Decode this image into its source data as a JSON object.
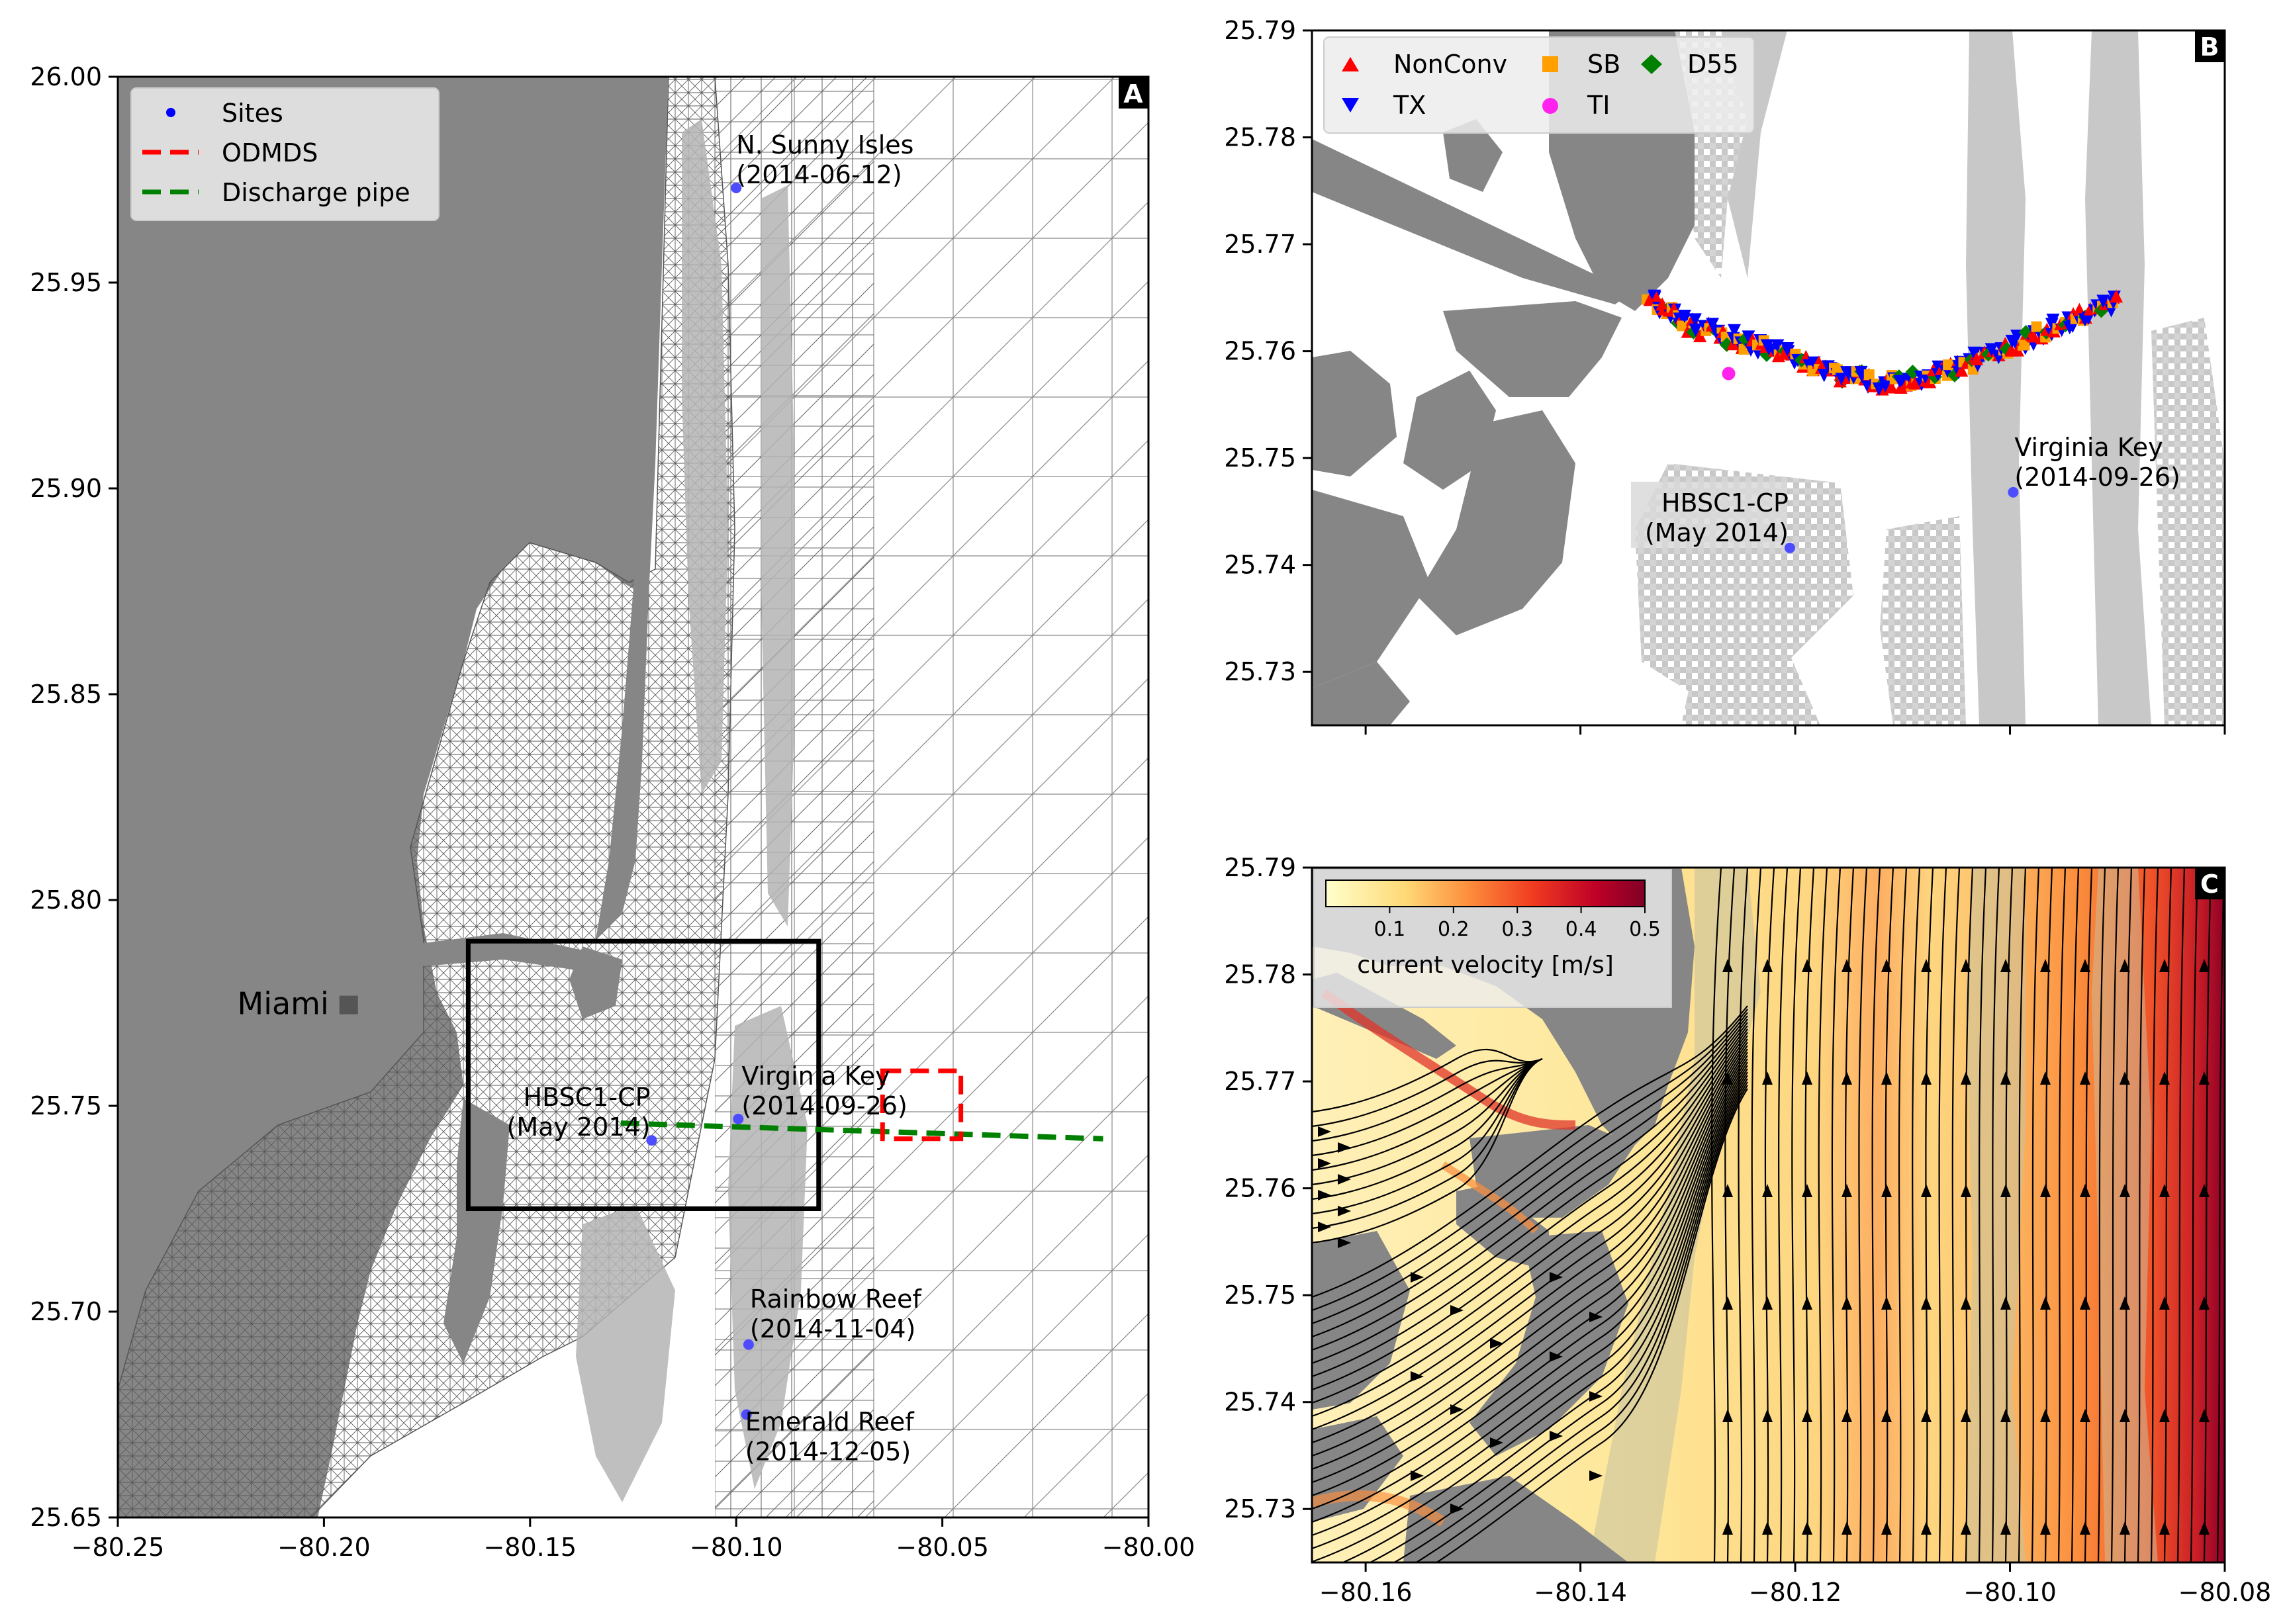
{
  "colors": {
    "land": "#868686",
    "shoal": "#c8c8c8",
    "mesh": "#555555",
    "site": "#4d4dff",
    "odmds": "#ff0000",
    "pipe": "#008000",
    "nonconv": "#ff0000",
    "tx": "#0000ff",
    "sb": "#ff9f00",
    "ti": "#ff22ee",
    "d55": "#008000",
    "stream": "#000000"
  },
  "chart_data": [
    {
      "type": "scatter",
      "panel_label": "A",
      "xlim": [
        -80.25,
        -80.0
      ],
      "ylim": [
        25.65,
        26.0
      ],
      "xticks": [
        -80.25,
        -80.2,
        -80.15,
        -80.1,
        -80.05,
        -80.0
      ],
      "xtick_labels": [
        "−80.25",
        "−80.20",
        "−80.15",
        "−80.10",
        "−80.05",
        "−80.00"
      ],
      "yticks": [
        25.65,
        25.7,
        25.75,
        25.8,
        25.85,
        25.9,
        25.95,
        26.0
      ],
      "ytick_labels": [
        "25.65",
        "25.70",
        "25.75",
        "25.80",
        "25.85",
        "25.90",
        "25.95",
        "26.00"
      ],
      "legend": {
        "placement": "upper-left",
        "entries": [
          {
            "label": "Sites",
            "marker": "dot",
            "color": "#0000ff"
          },
          {
            "label": "ODMDS",
            "marker": "dashed-line",
            "color": "#ff0000"
          },
          {
            "label": "Discharge pipe",
            "marker": "dashed-line",
            "color": "#008000"
          }
        ]
      },
      "sites": [
        {
          "name": "N. Sunny Isles",
          "date": "(2014-06-12)",
          "x": -80.1,
          "y": 25.973
        },
        {
          "name": "HBSC1-CP",
          "date": "(May 2014)",
          "x": -80.1205,
          "y": 25.7416
        },
        {
          "name": "Virginia Key",
          "date": "(2014-09-26)",
          "x": -80.0995,
          "y": 25.7468
        },
        {
          "name": "Rainbow Reef",
          "date": "(2014-11-04)",
          "x": -80.097,
          "y": 25.692
        },
        {
          "name": "Emerald Reef",
          "date": "(2014-12-05)",
          "x": -80.0975,
          "y": 25.675
        }
      ],
      "miami": {
        "label": "Miami",
        "x": -80.194,
        "y": 25.7745
      },
      "odmds_box": {
        "x": [
          -80.0645,
          -80.0455
        ],
        "y": [
          25.742,
          25.7585
        ]
      },
      "discharge_pipe": [
        [
          -80.128,
          25.7458
        ],
        [
          -80.011,
          25.742
        ]
      ],
      "inset_box": {
        "x": [
          -80.165,
          -80.08
        ],
        "y": [
          25.725,
          25.79
        ]
      }
    },
    {
      "type": "scatter",
      "panel_label": "B",
      "xlim": [
        -80.165,
        -80.08
      ],
      "ylim": [
        25.725,
        25.79
      ],
      "xticks": [
        -80.16,
        -80.14,
        -80.12,
        -80.1,
        -80.08
      ],
      "yticks": [
        25.73,
        25.74,
        25.75,
        25.76,
        25.77,
        25.78,
        25.79
      ],
      "ytick_labels": [
        "25.73",
        "25.74",
        "25.75",
        "25.76",
        "25.77",
        "25.78",
        "25.79"
      ],
      "legend": {
        "placement": "upper-left",
        "entries": [
          {
            "label": "NonConv",
            "marker": "triangle-up",
            "color": "#ff0000"
          },
          {
            "label": "TX",
            "marker": "triangle-down",
            "color": "#0000ff"
          },
          {
            "label": "SB",
            "marker": "square",
            "color": "#ff9f00"
          },
          {
            "label": "TI",
            "marker": "circle",
            "color": "#ff22ee"
          },
          {
            "label": "D55",
            "marker": "diamond",
            "color": "#008000"
          }
        ]
      },
      "track": [
        [
          -80.1335,
          25.765
        ],
        [
          -80.13,
          25.7625
        ],
        [
          -80.125,
          25.761
        ],
        [
          -80.12,
          25.7595
        ],
        [
          -80.115,
          25.7575
        ],
        [
          -80.11,
          25.757
        ],
        [
          -80.105,
          25.7585
        ],
        [
          -80.1,
          25.7605
        ],
        [
          -80.095,
          25.7625
        ],
        [
          -80.09,
          25.7648
        ]
      ],
      "ti_point": {
        "x": -80.1262,
        "y": 25.7579
      },
      "sites": [
        {
          "name": "HBSC1-CP",
          "date": "(May 2014)",
          "x": -80.1205,
          "y": 25.7416
        },
        {
          "name": "Virginia Key",
          "date": "(2014-09-26)",
          "x": -80.0997,
          "y": 25.7468
        }
      ]
    },
    {
      "type": "heatmap",
      "panel_label": "C",
      "xlim": [
        -80.165,
        -80.08
      ],
      "ylim": [
        25.725,
        25.79
      ],
      "xticks": [
        -80.16,
        -80.14,
        -80.12,
        -80.1,
        -80.08
      ],
      "xtick_labels": [
        "−80.16",
        "−80.14",
        "−80.12",
        "−80.10",
        "−80.08"
      ],
      "yticks": [
        25.73,
        25.74,
        25.75,
        25.76,
        25.77,
        25.78,
        25.79
      ],
      "ytick_labels": [
        "25.73",
        "25.74",
        "25.75",
        "25.76",
        "25.77",
        "25.78",
        "25.79"
      ],
      "colorbar": {
        "label": "current velocity [m/s]",
        "ticks": [
          0.1,
          0.2,
          0.3,
          0.4,
          0.5
        ],
        "tick_labels": [
          "0.1",
          "0.2",
          "0.3",
          "0.4",
          "0.5"
        ],
        "range": [
          0.0,
          0.5
        ],
        "cmap": "YlOrRd"
      }
    }
  ]
}
